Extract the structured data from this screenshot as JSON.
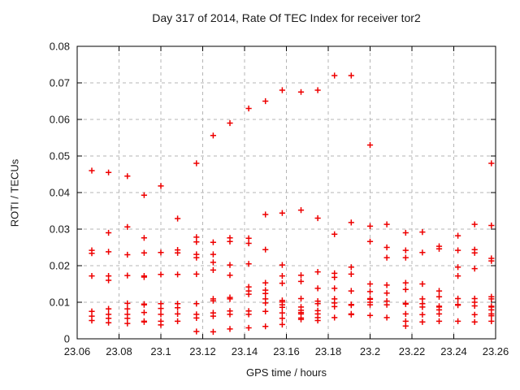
{
  "chart": {
    "title": "Day 317 of 2014, Rate Of TEC Index for receiver tor2",
    "xlabel": "GPS time / hours",
    "ylabel": "ROTI / TECUs"
  },
  "chart_data": {
    "type": "scatter",
    "title": "Day 317 of 2014, Rate Of TEC Index for receiver tor2",
    "xlabel": "GPS time / hours",
    "ylabel": "ROTI / TECUs",
    "xlim": [
      23.06,
      23.26
    ],
    "ylim": [
      0,
      0.08
    ],
    "x_ticks": [
      23.06,
      23.08,
      23.1,
      23.12,
      23.14,
      23.16,
      23.18,
      23.2,
      23.22,
      23.24,
      23.26
    ],
    "x_tick_labels": [
      "23.06",
      "23.08",
      "23.1",
      "23.12",
      "23.14",
      "23.16",
      "23.18",
      "23.2",
      "23.22",
      "23.24",
      "23.26"
    ],
    "y_ticks": [
      0,
      0.01,
      0.02,
      0.03,
      0.04,
      0.05,
      0.06,
      0.07,
      0.08
    ],
    "y_tick_labels": [
      "0",
      "0.01",
      "0.02",
      "0.03",
      "0.04",
      "0.05",
      "0.06",
      "0.07",
      "0.08"
    ],
    "grid": true,
    "grid_style": "dashed",
    "grid_color": "#b5b5b5",
    "border_color": "#000000",
    "background": "#ffffff",
    "legend": "none",
    "marker": "plus",
    "marker_color": "#ee0000",
    "series": [
      {
        "name": "ROTI",
        "points": [
          [
            23.067,
            0.046
          ],
          [
            23.067,
            0.0242
          ],
          [
            23.067,
            0.0234
          ],
          [
            23.067,
            0.0172
          ],
          [
            23.067,
            0.0075
          ],
          [
            23.067,
            0.0062
          ],
          [
            23.067,
            0.005
          ],
          [
            23.075,
            0.0455
          ],
          [
            23.075,
            0.029
          ],
          [
            23.075,
            0.0238
          ],
          [
            23.075,
            0.0172
          ],
          [
            23.075,
            0.016
          ],
          [
            23.075,
            0.0082
          ],
          [
            23.075,
            0.0067
          ],
          [
            23.075,
            0.0056
          ],
          [
            23.075,
            0.0044
          ],
          [
            23.084,
            0.0445
          ],
          [
            23.084,
            0.0306
          ],
          [
            23.084,
            0.023
          ],
          [
            23.084,
            0.0173
          ],
          [
            23.084,
            0.0097
          ],
          [
            23.084,
            0.0082
          ],
          [
            23.084,
            0.0067
          ],
          [
            23.084,
            0.0056
          ],
          [
            23.084,
            0.0042
          ],
          [
            23.092,
            0.0393
          ],
          [
            23.092,
            0.0276
          ],
          [
            23.092,
            0.0235
          ],
          [
            23.092,
            0.0172
          ],
          [
            23.092,
            0.0169
          ],
          [
            23.092,
            0.0095
          ],
          [
            23.092,
            0.0093
          ],
          [
            23.092,
            0.0072
          ],
          [
            23.092,
            0.0048
          ],
          [
            23.092,
            0.0046
          ],
          [
            23.1,
            0.0418
          ],
          [
            23.1,
            0.0236
          ],
          [
            23.1,
            0.0176
          ],
          [
            23.1,
            0.0096
          ],
          [
            23.1,
            0.0083
          ],
          [
            23.1,
            0.0067
          ],
          [
            23.1,
            0.0048
          ],
          [
            23.1,
            0.0038
          ],
          [
            23.108,
            0.0329
          ],
          [
            23.108,
            0.0243
          ],
          [
            23.108,
            0.0235
          ],
          [
            23.108,
            0.0176
          ],
          [
            23.108,
            0.0096
          ],
          [
            23.108,
            0.0085
          ],
          [
            23.108,
            0.0068
          ],
          [
            23.108,
            0.0048
          ],
          [
            23.117,
            0.048
          ],
          [
            23.117,
            0.0278
          ],
          [
            23.117,
            0.0265
          ],
          [
            23.117,
            0.0231
          ],
          [
            23.117,
            0.0222
          ],
          [
            23.117,
            0.0177
          ],
          [
            23.117,
            0.0096
          ],
          [
            23.117,
            0.0067
          ],
          [
            23.117,
            0.0057
          ],
          [
            23.117,
            0.002
          ],
          [
            23.125,
            0.0556
          ],
          [
            23.125,
            0.0264
          ],
          [
            23.125,
            0.0231
          ],
          [
            23.125,
            0.0209
          ],
          [
            23.125,
            0.0188
          ],
          [
            23.125,
            0.0109
          ],
          [
            23.125,
            0.0104
          ],
          [
            23.125,
            0.0071
          ],
          [
            23.125,
            0.0062
          ],
          [
            23.125,
            0.0019
          ],
          [
            23.133,
            0.059
          ],
          [
            23.133,
            0.0276
          ],
          [
            23.133,
            0.0266
          ],
          [
            23.133,
            0.0202
          ],
          [
            23.133,
            0.0174
          ],
          [
            23.133,
            0.0113
          ],
          [
            23.133,
            0.0109
          ],
          [
            23.133,
            0.0076
          ],
          [
            23.133,
            0.0067
          ],
          [
            23.133,
            0.0027
          ],
          [
            23.142,
            0.063
          ],
          [
            23.142,
            0.0275
          ],
          [
            23.142,
            0.0261
          ],
          [
            23.142,
            0.0205
          ],
          [
            23.142,
            0.0142
          ],
          [
            23.142,
            0.0131
          ],
          [
            23.142,
            0.0122
          ],
          [
            23.142,
            0.0076
          ],
          [
            23.142,
            0.0067
          ],
          [
            23.142,
            0.003
          ],
          [
            23.15,
            0.065
          ],
          [
            23.15,
            0.034
          ],
          [
            23.15,
            0.0244
          ],
          [
            23.15,
            0.0153
          ],
          [
            23.15,
            0.0133
          ],
          [
            23.15,
            0.0124
          ],
          [
            23.15,
            0.0109
          ],
          [
            23.15,
            0.0098
          ],
          [
            23.15,
            0.0075
          ],
          [
            23.15,
            0.0034
          ],
          [
            23.158,
            0.068
          ],
          [
            23.158,
            0.0344
          ],
          [
            23.158,
            0.0202
          ],
          [
            23.158,
            0.0172
          ],
          [
            23.158,
            0.0152
          ],
          [
            23.158,
            0.0105
          ],
          [
            23.158,
            0.0101
          ],
          [
            23.158,
            0.0093
          ],
          [
            23.158,
            0.0086
          ],
          [
            23.158,
            0.0071
          ],
          [
            23.158,
            0.0056
          ],
          [
            23.158,
            0.0039
          ],
          [
            23.167,
            0.0675
          ],
          [
            23.167,
            0.0352
          ],
          [
            23.167,
            0.0174
          ],
          [
            23.167,
            0.0157
          ],
          [
            23.167,
            0.011
          ],
          [
            23.167,
            0.0087
          ],
          [
            23.167,
            0.0078
          ],
          [
            23.167,
            0.0072
          ],
          [
            23.167,
            0.0068
          ],
          [
            23.167,
            0.0057
          ],
          [
            23.167,
            0.0053
          ],
          [
            23.175,
            0.068
          ],
          [
            23.175,
            0.033
          ],
          [
            23.175,
            0.0183
          ],
          [
            23.175,
            0.0138
          ],
          [
            23.175,
            0.0103
          ],
          [
            23.175,
            0.0096
          ],
          [
            23.175,
            0.0077
          ],
          [
            23.175,
            0.0068
          ],
          [
            23.175,
            0.0058
          ],
          [
            23.175,
            0.005
          ],
          [
            23.183,
            0.072
          ],
          [
            23.183,
            0.0286
          ],
          [
            23.183,
            0.0179
          ],
          [
            23.183,
            0.0168
          ],
          [
            23.183,
            0.0138
          ],
          [
            23.183,
            0.0109
          ],
          [
            23.183,
            0.0098
          ],
          [
            23.183,
            0.0088
          ],
          [
            23.183,
            0.0058
          ],
          [
            23.191,
            0.072
          ],
          [
            23.191,
            0.0318
          ],
          [
            23.191,
            0.0196
          ],
          [
            23.191,
            0.0177
          ],
          [
            23.191,
            0.0131
          ],
          [
            23.191,
            0.0094
          ],
          [
            23.191,
            0.0092
          ],
          [
            23.191,
            0.0068
          ],
          [
            23.191,
            0.0066
          ],
          [
            23.2,
            0.053
          ],
          [
            23.2,
            0.0308
          ],
          [
            23.2,
            0.0266
          ],
          [
            23.2,
            0.015
          ],
          [
            23.2,
            0.0129
          ],
          [
            23.2,
            0.011
          ],
          [
            23.2,
            0.0108
          ],
          [
            23.2,
            0.01
          ],
          [
            23.2,
            0.0093
          ],
          [
            23.2,
            0.0064
          ],
          [
            23.208,
            0.0313
          ],
          [
            23.208,
            0.025
          ],
          [
            23.208,
            0.0222
          ],
          [
            23.208,
            0.0147
          ],
          [
            23.208,
            0.0125
          ],
          [
            23.208,
            0.0103
          ],
          [
            23.208,
            0.0093
          ],
          [
            23.208,
            0.0058
          ],
          [
            23.217,
            0.029
          ],
          [
            23.217,
            0.0242
          ],
          [
            23.217,
            0.0222
          ],
          [
            23.217,
            0.0153
          ],
          [
            23.217,
            0.0135
          ],
          [
            23.217,
            0.0097
          ],
          [
            23.217,
            0.0095
          ],
          [
            23.217,
            0.0068
          ],
          [
            23.217,
            0.0048
          ],
          [
            23.217,
            0.0035
          ],
          [
            23.225,
            0.0292
          ],
          [
            23.225,
            0.0236
          ],
          [
            23.225,
            0.015
          ],
          [
            23.225,
            0.0109
          ],
          [
            23.225,
            0.0096
          ],
          [
            23.225,
            0.0087
          ],
          [
            23.225,
            0.0066
          ],
          [
            23.225,
            0.0046
          ],
          [
            23.233,
            0.0253
          ],
          [
            23.233,
            0.0246
          ],
          [
            23.233,
            0.0131
          ],
          [
            23.233,
            0.0115
          ],
          [
            23.233,
            0.0089
          ],
          [
            23.233,
            0.0087
          ],
          [
            23.233,
            0.0079
          ],
          [
            23.233,
            0.0068
          ],
          [
            23.233,
            0.0048
          ],
          [
            23.242,
            0.0282
          ],
          [
            23.242,
            0.0242
          ],
          [
            23.242,
            0.0196
          ],
          [
            23.242,
            0.0172
          ],
          [
            23.242,
            0.011
          ],
          [
            23.242,
            0.0094
          ],
          [
            23.242,
            0.0092
          ],
          [
            23.242,
            0.0048
          ],
          [
            23.25,
            0.0313
          ],
          [
            23.25,
            0.0244
          ],
          [
            23.25,
            0.0235
          ],
          [
            23.25,
            0.0192
          ],
          [
            23.25,
            0.011
          ],
          [
            23.25,
            0.01
          ],
          [
            23.25,
            0.009
          ],
          [
            23.25,
            0.0066
          ],
          [
            23.25,
            0.0046
          ],
          [
            23.258,
            0.048
          ],
          [
            23.258,
            0.031
          ],
          [
            23.258,
            0.022
          ],
          [
            23.258,
            0.0213
          ],
          [
            23.258,
            0.0115
          ],
          [
            23.258,
            0.0109
          ],
          [
            23.258,
            0.0089
          ],
          [
            23.258,
            0.0087
          ],
          [
            23.258,
            0.0079
          ],
          [
            23.258,
            0.0068
          ],
          [
            23.258,
            0.0063
          ],
          [
            23.258,
            0.0048
          ]
        ]
      }
    ]
  }
}
